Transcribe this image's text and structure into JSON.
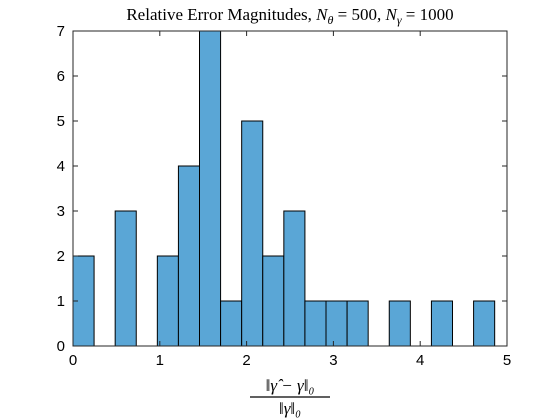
{
  "chart_data": {
    "type": "bar",
    "title": "Relative Error Magnitudes, Nθ = 500, Nγ = 1000",
    "title_parts": {
      "prefix": "Relative Error Magnitudes, ",
      "n1": "N",
      "n1_sub": "θ",
      "mid": " = 500, ",
      "n2": "N",
      "n2_sub": "γ",
      "suffix": " = 1000"
    },
    "xlabel": "‖γ̂ − γ‖₀ / ‖γ‖₀",
    "xlabel_parts": {
      "numerator": "‖γ̂ − γ‖₀",
      "denominator": "‖γ‖₀"
    },
    "ylabel": "",
    "xlim": [
      0,
      5
    ],
    "ylim": [
      0,
      7
    ],
    "xticks": [
      0,
      1,
      2,
      3,
      4,
      5
    ],
    "yticks": [
      0,
      1,
      2,
      3,
      4,
      5,
      6,
      7
    ],
    "bin_width": 0.2429,
    "bin_starts": [
      0.0,
      0.2429,
      0.4858,
      0.7287,
      0.9716,
      1.2145,
      1.4574,
      1.7003,
      1.9432,
      2.1861,
      2.429,
      2.6719,
      2.9148,
      3.1577,
      3.4006,
      3.6435,
      3.8864,
      4.1293,
      4.3722,
      4.6151
    ],
    "values": [
      2,
      0,
      3,
      0,
      2,
      4,
      7,
      1,
      5,
      2,
      3,
      1,
      1,
      1,
      0,
      1,
      0,
      1,
      0,
      1
    ],
    "bar_color": "#5aa6d6",
    "edge_color": "#000000",
    "grid": false,
    "legend": "none"
  }
}
